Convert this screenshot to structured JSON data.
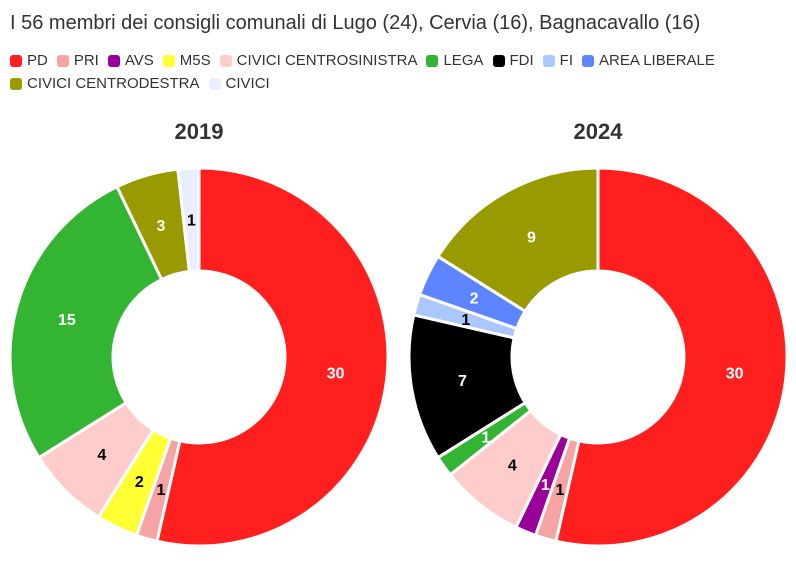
{
  "title": "I 56 membri dei consigli comunali di Lugo (24), Cervia (16), Bagnacavallo (16)",
  "legend": [
    {
      "label": "PD",
      "color": "#ff1f1f"
    },
    {
      "label": "PRI",
      "color": "#f5a3a3"
    },
    {
      "label": "AVS",
      "color": "#990099"
    },
    {
      "label": "M5S",
      "color": "#ffff33"
    },
    {
      "label": "CIVICI CENTROSINISTRA",
      "color": "#ffcccc"
    },
    {
      "label": "LEGA",
      "color": "#33b533"
    },
    {
      "label": "FDI",
      "color": "#000000"
    },
    {
      "label": "FI",
      "color": "#aac8ff"
    },
    {
      "label": "AREA LIBERALE",
      "color": "#5c85ff"
    },
    {
      "label": "CIVICI CENTRODESTRA",
      "color": "#999900"
    },
    {
      "label": "CIVICI",
      "color": "#e8eefc"
    }
  ],
  "chart_data": [
    {
      "type": "pie",
      "title": "2019",
      "categories": [
        "PD",
        "PRI",
        "M5S",
        "CIVICI CENTROSINISTRA",
        "LEGA",
        "CIVICI CENTRODESTRA",
        "CIVICI"
      ],
      "values": [
        30,
        1,
        2,
        4,
        15,
        3,
        1
      ],
      "colors": [
        "#ff1f1f",
        "#f5a3a3",
        "#ffff33",
        "#ffcccc",
        "#33b533",
        "#999900",
        "#e8eefc"
      ],
      "label_colors": [
        "#ffffff",
        "#000000",
        "#000000",
        "#000000",
        "#ffffff",
        "#ffffff",
        "#000000"
      ]
    },
    {
      "type": "pie",
      "title": "2024",
      "categories": [
        "PD",
        "PRI",
        "AVS",
        "CIVICI CENTROSINISTRA",
        "LEGA",
        "FDI",
        "FI",
        "AREA LIBERALE",
        "CIVICI CENTRODESTRA"
      ],
      "values": [
        30,
        1,
        1,
        4,
        1,
        7,
        1,
        2,
        9
      ],
      "colors": [
        "#ff1f1f",
        "#f5a3a3",
        "#990099",
        "#ffcccc",
        "#33b533",
        "#000000",
        "#aac8ff",
        "#5c85ff",
        "#999900"
      ],
      "label_colors": [
        "#ffffff",
        "#000000",
        "#ffffff",
        "#000000",
        "#ffffff",
        "#ffffff",
        "#000000",
        "#ffffff",
        "#ffffff"
      ]
    }
  ]
}
